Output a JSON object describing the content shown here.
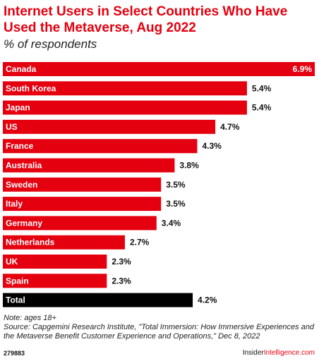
{
  "title": "Internet Users in Select Countries Who Have Used the Metaverse, Aug 2022",
  "subtitle": "% of respondents",
  "note": "Note: ages 18+",
  "source": "Source: Capgemini Research Institute, \"Total Immersion: How Immersive Experiences and the Metaverse Benefit Customer Experience and Operations,\" Dec 8, 2022",
  "footer": {
    "chart_id": "279883",
    "brand_prefix": "Insider",
    "brand_suffix": "Intelligence.com"
  },
  "colors": {
    "bar": "#e5000f",
    "total_bar": "#000000",
    "title": "#e5000f"
  },
  "chart_data": {
    "type": "bar",
    "orientation": "horizontal",
    "categories": [
      "Canada",
      "South Korea",
      "Japan",
      "US",
      "France",
      "Australia",
      "Sweden",
      "Italy",
      "Germany",
      "Netherlands",
      "UK",
      "Spain",
      "Total"
    ],
    "values": [
      6.9,
      5.4,
      5.4,
      4.7,
      4.3,
      3.8,
      3.5,
      3.5,
      3.4,
      2.7,
      2.3,
      2.3,
      4.2
    ],
    "value_labels": [
      "6.9%",
      "5.4%",
      "5.4%",
      "4.7%",
      "4.3%",
      "3.8%",
      "3.5%",
      "3.5%",
      "3.4%",
      "2.7%",
      "2.3%",
      "2.3%",
      "4.2%"
    ],
    "highlight": "Total",
    "title": "Internet Users in Select Countries Who Have Used the Metaverse, Aug 2022",
    "xlabel": "",
    "ylabel": "",
    "xlim": [
      0,
      6.9
    ],
    "grid": false,
    "legend": "none"
  }
}
